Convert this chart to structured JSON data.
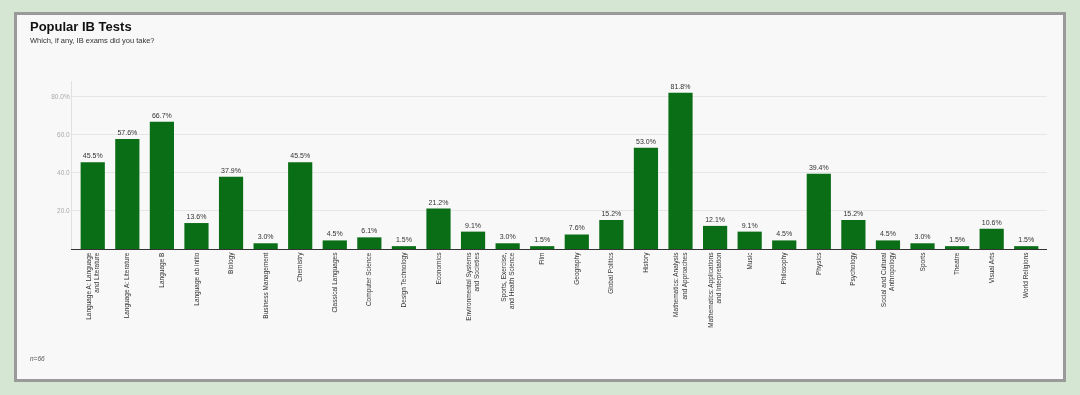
{
  "chart_data": {
    "type": "bar",
    "title": "Popular IB Tests",
    "subtitle": "Which, if any, IB exams did you take?",
    "categories": [
      "Language A: Language and Literature",
      "Language A: Literature",
      "Language B",
      "Language ab initio",
      "Biology",
      "Business Management",
      "Chemistry",
      "Classical Languages",
      "Computer Science",
      "Design Technology",
      "Economics",
      "Environmental Systems and Societies",
      "Sports, Exercise, and Health Science",
      "Film",
      "Geography",
      "Global Politics",
      "History",
      "Mathematics: Analysis and Approaches",
      "Mathematics: Applications and Interpretation",
      "Music",
      "Philosophy",
      "Physics",
      "Psychology",
      "Social and Cultural Anthropology",
      "Sports",
      "Theatre",
      "Visual Arts",
      "World Religions"
    ],
    "values": [
      45.5,
      57.6,
      66.7,
      13.6,
      37.9,
      3.0,
      45.5,
      4.5,
      6.1,
      1.5,
      21.2,
      9.1,
      3.0,
      1.5,
      7.6,
      15.2,
      53.0,
      81.8,
      12.1,
      9.1,
      4.5,
      39.4,
      15.2,
      4.5,
      3.0,
      1.5,
      10.6,
      1.5
    ],
    "value_labels": [
      "45.5%",
      "57.6%",
      "66.7%",
      "13.6%",
      "37.9%",
      "3.0%",
      "45.5%",
      "4.5%",
      "6.1%",
      "1.5%",
      "21.2%",
      "9.1%",
      "3.0%",
      "1.5%",
      "7.6%",
      "15.2%",
      "53.0%",
      "81.8%",
      "12.1%",
      "9.1%",
      "4.5%",
      "39.4%",
      "15.2%",
      "4.5%",
      "3.0%",
      "1.5%",
      "10.6%",
      "1.5%"
    ],
    "color": "#0a6e17",
    "ylim": [
      0,
      88
    ],
    "yticks": [
      {
        "value": 20,
        "label": "20.0"
      },
      {
        "value": 40,
        "label": "40.0"
      },
      {
        "value": 60,
        "label": "60.0"
      },
      {
        "value": 80,
        "label": "80.0%"
      }
    ],
    "grid": "y",
    "annotations": [
      "n=66"
    ]
  }
}
